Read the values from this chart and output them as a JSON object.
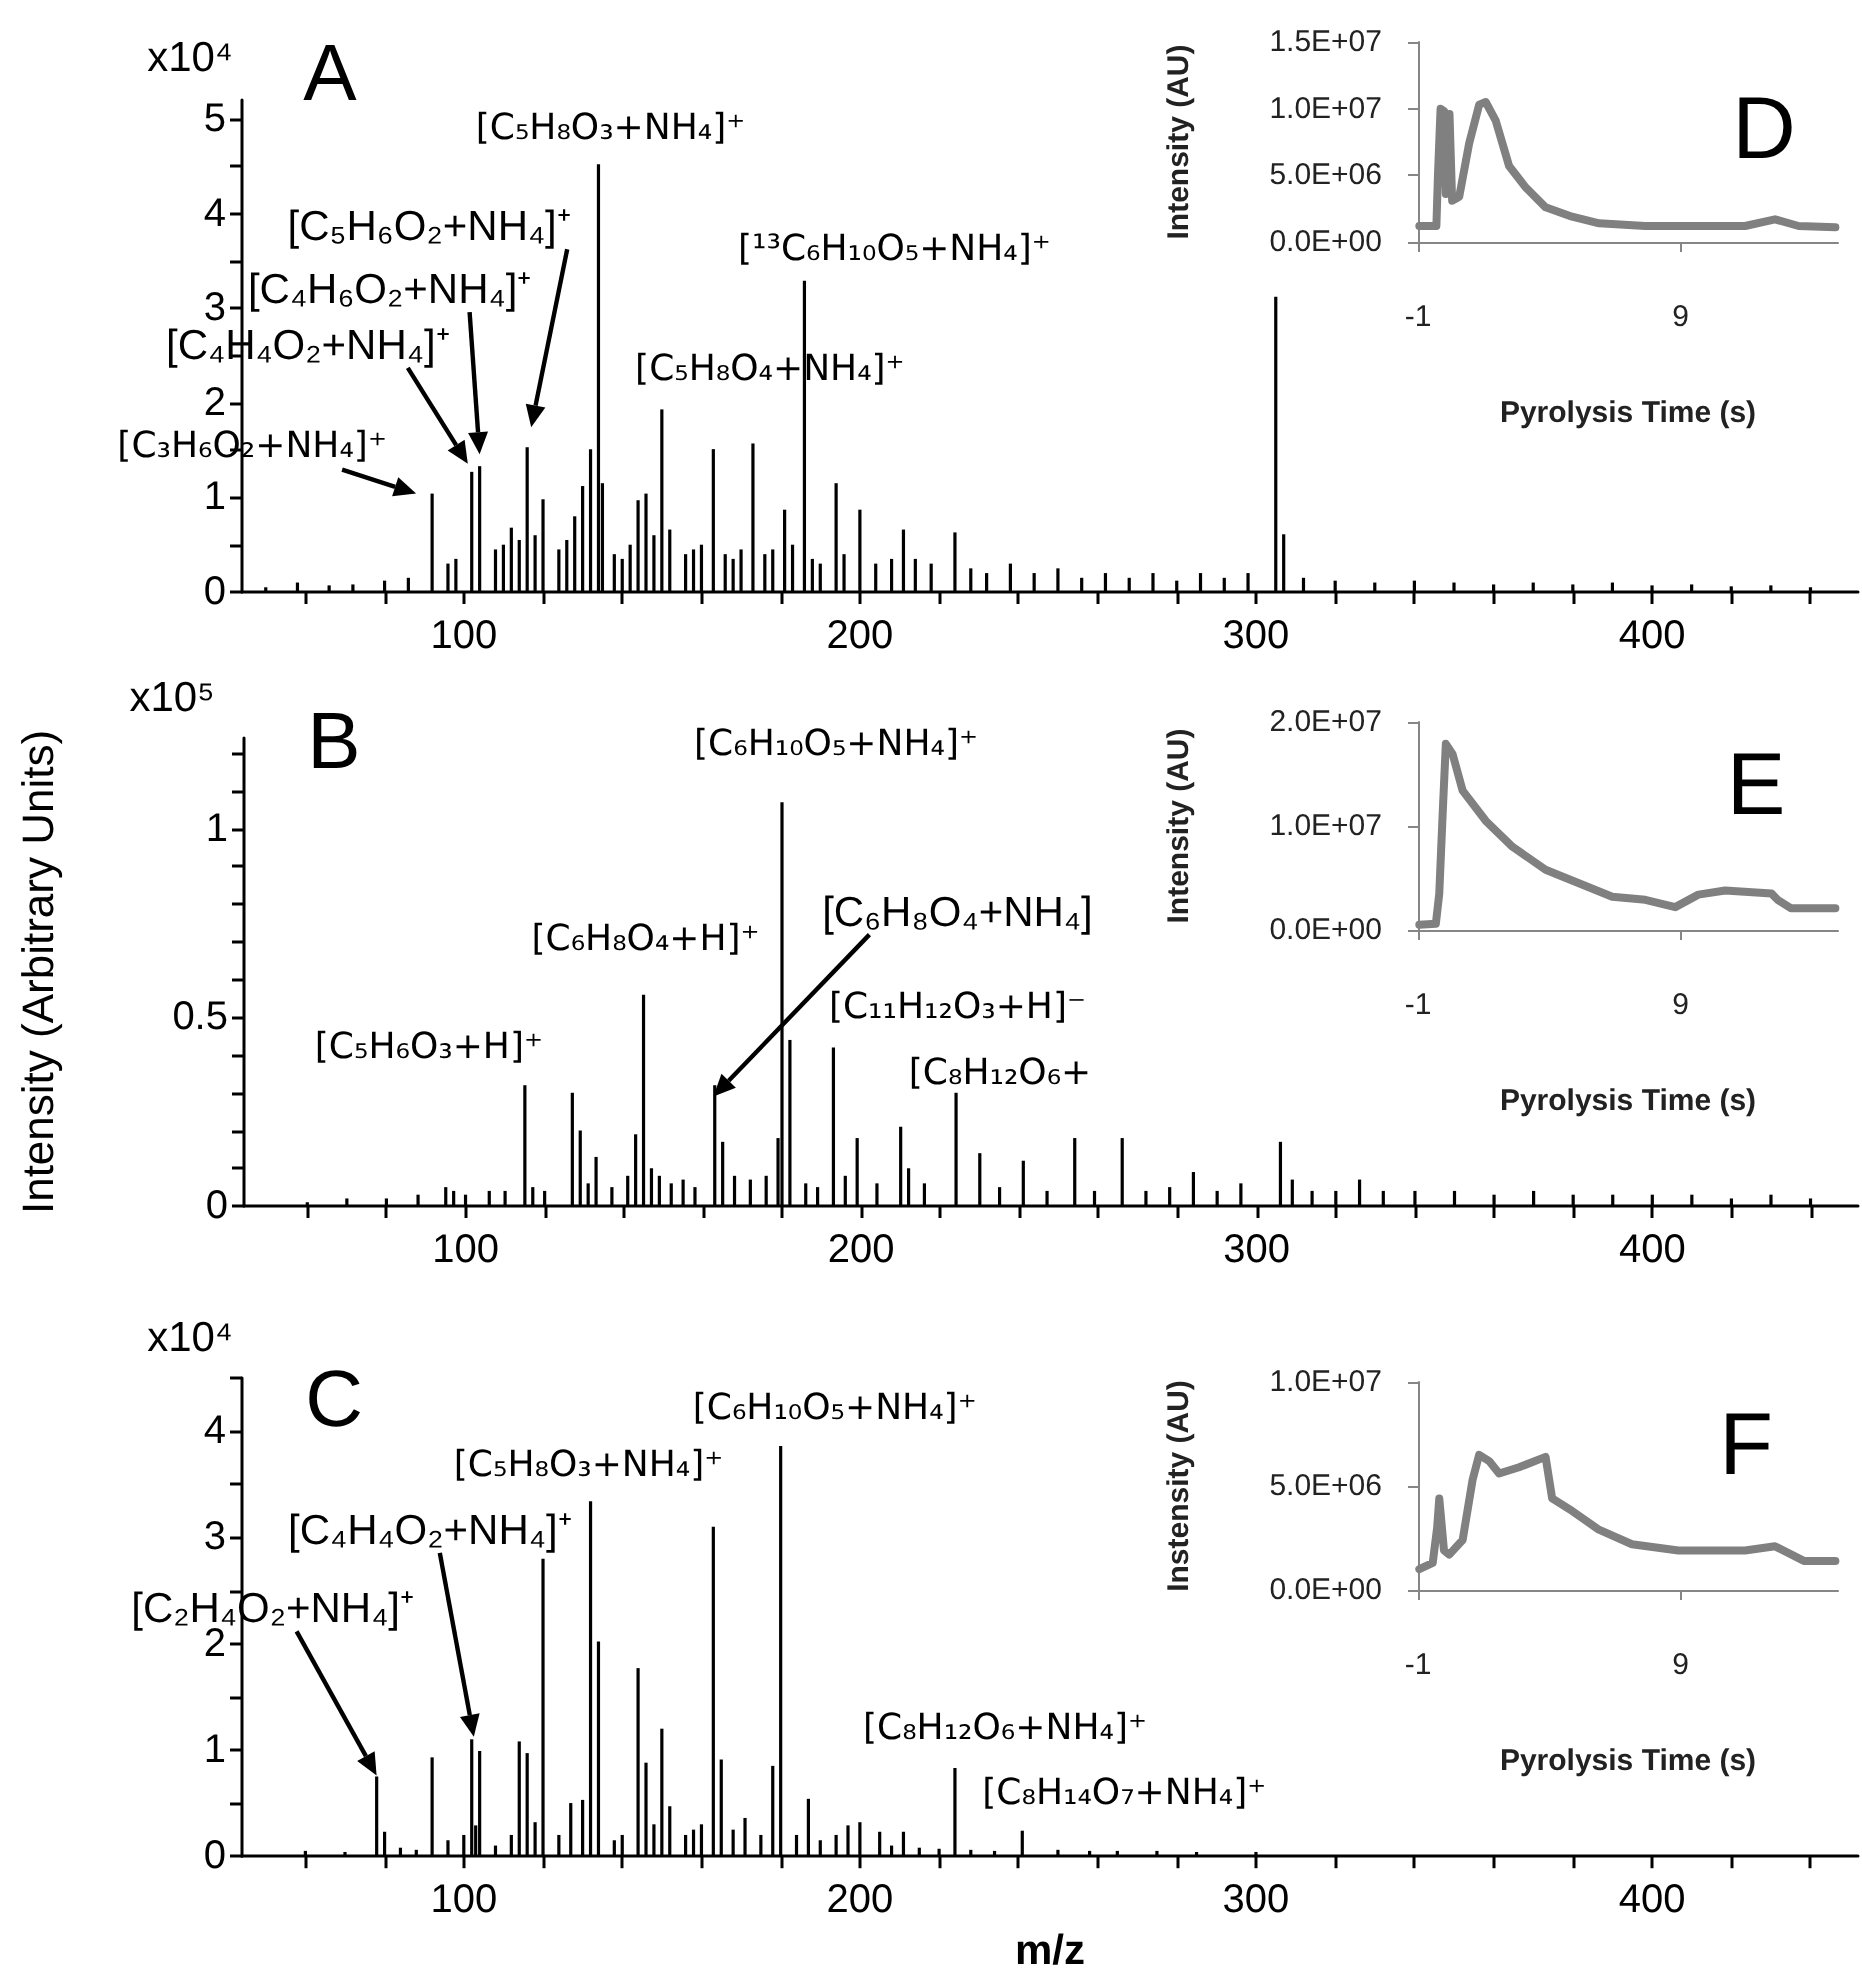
{
  "chart_data": [
    {
      "type": "bar",
      "title": "A",
      "color": "#000000",
      "x": [
        50,
        58,
        66,
        72,
        80,
        86,
        92,
        96,
        98,
        102,
        104,
        108,
        110,
        112,
        114,
        116,
        118,
        120,
        124,
        126,
        128,
        130,
        132,
        134,
        135,
        138,
        140,
        142,
        144,
        146,
        148,
        150,
        152,
        156,
        158,
        160,
        163,
        166,
        168,
        170,
        173,
        176,
        178,
        181,
        183,
        186,
        188,
        190,
        194,
        196,
        200,
        204,
        208,
        211,
        214,
        218,
        224,
        228,
        232,
        238,
        244,
        250,
        256,
        262,
        268,
        274,
        280,
        286,
        292,
        298,
        305,
        307,
        312,
        320,
        330,
        340,
        350,
        360,
        370,
        380,
        390,
        400,
        410,
        420,
        430,
        440
      ],
      "values": [
        0.05,
        0.1,
        0.07,
        0.08,
        0.12,
        0.15,
        1.04,
        0.3,
        0.35,
        1.27,
        1.33,
        0.45,
        0.5,
        0.68,
        0.55,
        1.53,
        0.6,
        0.98,
        0.45,
        0.55,
        0.8,
        1.12,
        1.51,
        4.52,
        1.15,
        0.4,
        0.35,
        0.5,
        0.97,
        1.04,
        0.6,
        1.93,
        0.66,
        0.4,
        0.45,
        0.5,
        1.51,
        0.4,
        0.35,
        0.45,
        1.57,
        0.4,
        0.45,
        0.87,
        0.5,
        3.29,
        0.35,
        0.3,
        1.15,
        0.4,
        0.87,
        0.3,
        0.35,
        0.66,
        0.35,
        0.3,
        0.63,
        0.25,
        0.2,
        0.3,
        0.2,
        0.25,
        0.15,
        0.2,
        0.15,
        0.2,
        0.12,
        0.2,
        0.15,
        0.2,
        3.12,
        0.61,
        0.15,
        0.12,
        0.1,
        0.12,
        0.1,
        0.08,
        0.1,
        0.08,
        0.1,
        0.07,
        0.08,
        0.06,
        0.07,
        0.05
      ],
      "xlim": [
        44,
        452
      ],
      "xticks": [
        {
          "value": 60,
          "label": null
        },
        {
          "value": 80,
          "label": null
        },
        100,
        {
          "value": 120,
          "label": null
        },
        {
          "value": 140,
          "label": null
        },
        {
          "value": 160,
          "label": null
        },
        {
          "value": 180,
          "label": null
        },
        200,
        {
          "value": 220,
          "label": null
        },
        {
          "value": 240,
          "label": null
        },
        {
          "value": 260,
          "label": null
        },
        {
          "value": 280,
          "label": null
        },
        300,
        {
          "value": 320,
          "label": null
        },
        {
          "value": 340,
          "label": null
        },
        {
          "value": 360,
          "label": null
        },
        {
          "value": 380,
          "label": null
        },
        400,
        {
          "value": 420,
          "label": null
        },
        {
          "value": 440,
          "label": null
        }
      ],
      "ylim": [
        0,
        5.2
      ],
      "yticks": [
        0,
        {
          "value": 0.5,
          "label": null
        },
        1,
        {
          "value": 1.5,
          "label": null
        },
        2,
        {
          "value": 2.5,
          "label": null
        },
        3,
        {
          "value": 3.5,
          "label": null
        },
        4,
        {
          "value": 4.5,
          "label": null
        },
        5
      ],
      "annotations": [
        "x10⁴",
        {
          "text": "[C₃H₆O₂+NH₄]⁺",
          "x": 92,
          "y": 1.04
        },
        "[C₄H₄O₂+NH₄]⁺",
        "[C₄H₆O₂+NH₄]⁺",
        "[C₅H₆O₂+NH₄]⁺",
        {
          "text": "[C₅H₈O₃+NH₄]⁺",
          "x": 134,
          "y": 4.52
        },
        {
          "text": "[C₅H₈O₄+NH₄]⁺",
          "x": 150,
          "y": 1.93
        },
        {
          "text": "[¹³C₆H₁₀O₅+NH₄]⁺",
          "x": 186,
          "y": 3.29
        }
      ]
    },
    {
      "type": "line",
      "title": "D",
      "xlabel": "Pyrolysis Time (s)",
      "ylabel": "Intensity (AU)",
      "color": "#808080",
      "marker": "none",
      "line_style": "solid",
      "x": [
        -0.95,
        -0.3,
        -0.24,
        -0.14,
        0.0,
        0.06,
        0.2,
        0.3,
        0.57,
        0.95,
        1.33,
        1.58,
        1.96,
        2.47,
        3.1,
        3.86,
        4.87,
        5.9,
        7.66,
        11.46,
        12.6,
        13.5,
        14.9
      ],
      "values": [
        1200000,
        1200000,
        5000000,
        10000000,
        9800000,
        3600000,
        9600000,
        3100000,
        3400000,
        7400000,
        10300000,
        10500000,
        9100000,
        5700000,
        4100000,
        2600000,
        1900000,
        1400000,
        1200000,
        1200000,
        1700000,
        1200000,
        1100000
      ],
      "xlim": [
        -1,
        15
      ],
      "xticks": [
        -1,
        9
      ],
      "ylim": [
        0,
        15000000
      ],
      "yticks": [
        {
          "value": 0,
          "label": "0.0E+00"
        },
        {
          "value": 5000000,
          "label": "5.0E+06"
        },
        {
          "value": 10000000,
          "label": "1.0E+07"
        },
        {
          "value": 15000000,
          "label": "1.5E+07"
        }
      ]
    },
    {
      "type": "bar",
      "title": "B",
      "ylabel": "Intensity (Arbitrary Units)",
      "color": "#000000",
      "x": [
        60,
        70,
        80,
        88,
        95,
        97,
        100,
        106,
        110,
        115,
        117,
        120,
        127,
        129,
        131,
        133,
        137,
        141,
        143,
        145,
        147,
        149,
        152,
        155,
        158,
        163,
        165,
        168,
        172,
        176,
        179,
        180,
        182,
        186,
        189,
        193,
        196,
        199,
        204,
        210,
        212,
        216,
        224,
        230,
        235,
        241,
        247,
        254,
        259,
        266,
        272,
        278,
        284,
        290,
        296,
        306,
        309,
        314,
        320,
        326,
        332,
        340,
        350,
        360,
        370,
        380,
        390,
        400,
        410,
        420,
        430,
        440
      ],
      "values": [
        0.01,
        0.02,
        0.02,
        0.03,
        0.05,
        0.04,
        0.03,
        0.04,
        0.04,
        0.32,
        0.05,
        0.04,
        0.3,
        0.2,
        0.06,
        0.13,
        0.05,
        0.08,
        0.19,
        0.56,
        0.1,
        0.08,
        0.06,
        0.07,
        0.05,
        0.32,
        0.17,
        0.08,
        0.07,
        0.08,
        0.18,
        1.07,
        0.44,
        0.06,
        0.05,
        0.42,
        0.08,
        0.18,
        0.06,
        0.21,
        0.1,
        0.06,
        0.3,
        0.14,
        0.05,
        0.12,
        0.04,
        0.18,
        0.04,
        0.18,
        0.04,
        0.05,
        0.09,
        0.04,
        0.06,
        0.17,
        0.07,
        0.04,
        0.04,
        0.07,
        0.04,
        0.04,
        0.04,
        0.03,
        0.04,
        0.03,
        0.03,
        0.03,
        0.03,
        0.02,
        0.03,
        0.02
      ],
      "xlim": [
        44,
        452
      ],
      "xticks": [
        {
          "value": 60,
          "label": null
        },
        {
          "value": 80,
          "label": null
        },
        100,
        {
          "value": 120,
          "label": null
        },
        {
          "value": 140,
          "label": null
        },
        {
          "value": 160,
          "label": null
        },
        {
          "value": 180,
          "label": null
        },
        200,
        {
          "value": 220,
          "label": null
        },
        {
          "value": 240,
          "label": null
        },
        {
          "value": 260,
          "label": null
        },
        {
          "value": 280,
          "label": null
        },
        300,
        {
          "value": 320,
          "label": null
        },
        {
          "value": 340,
          "label": null
        },
        {
          "value": 360,
          "label": null
        },
        {
          "value": 380,
          "label": null
        },
        400,
        {
          "value": 420,
          "label": null
        },
        {
          "value": 440,
          "label": null
        }
      ],
      "ylim": [
        0,
        1.24
      ],
      "yticks": [
        0,
        {
          "value": 0.1,
          "label": null
        },
        {
          "value": 0.2,
          "label": null
        },
        {
          "value": 0.3,
          "label": null
        },
        {
          "value": 0.4,
          "label": null
        },
        0.5,
        {
          "value": 0.6,
          "label": null
        },
        {
          "value": 0.7,
          "label": null
        },
        {
          "value": 0.8,
          "label": null
        },
        {
          "value": 0.9,
          "label": null
        },
        1,
        {
          "value": 1.1,
          "label": null
        },
        {
          "value": 1.2,
          "label": null
        }
      ],
      "annotations": [
        "x10⁵",
        {
          "text": "[C₅H₆O₃+H]⁺",
          "x": 115,
          "y": 0.32
        },
        {
          "text": "[C₆H₈O₄+H]⁺",
          "x": 145,
          "y": 0.56
        },
        {
          "text": "[C₆H₁₀O₅+NH₄]⁺",
          "x": 180,
          "y": 1.07
        },
        "[C₆H₈O₄+NH₄]",
        {
          "text": "[C₁₁H₁₂O₃+H]⁻",
          "x": 193,
          "y": 0.42
        },
        {
          "text": "[C₈H₁₂O₆+",
          "x": 224,
          "y": 0.3
        }
      ]
    },
    {
      "type": "line",
      "title": "E",
      "xlabel": "Pyrolysis Time (s)",
      "ylabel": "Intensity (AU)",
      "color": "#808080",
      "marker": "none",
      "line_style": "solid",
      "x": [
        -0.95,
        -0.32,
        -0.19,
        -0.06,
        0.06,
        0.32,
        0.7,
        1.58,
        2.6,
        3.86,
        5.13,
        6.4,
        7.66,
        8.8,
        9.68,
        10.7,
        12.47,
        12.7,
        13.2,
        14.9
      ],
      "values": [
        500000,
        600000,
        3500000,
        11200000,
        17900000,
        16900000,
        13400000,
        10500000,
        8000000,
        5800000,
        4500000,
        3200000,
        2900000,
        2200000,
        3400000,
        3800000,
        3500000,
        2900000,
        2100000,
        2100000
      ],
      "xlim": [
        -1,
        15
      ],
      "xticks": [
        -1,
        9
      ],
      "ylim": [
        0,
        20000000
      ],
      "yticks": [
        {
          "value": 0,
          "label": "0.0E+00"
        },
        {
          "value": 10000000,
          "label": "1.0E+07"
        },
        {
          "value": 20000000,
          "label": "2.0E+07"
        }
      ]
    },
    {
      "type": "bar",
      "title": "C",
      "xlabel": "m/z",
      "color": "#000000",
      "x": [
        60,
        70,
        78,
        80,
        84,
        88,
        92,
        96,
        100,
        102,
        103,
        104,
        108,
        112,
        114,
        116,
        118,
        120,
        124,
        127,
        130,
        132,
        134,
        138,
        140,
        144,
        146,
        148,
        150,
        152,
        156,
        158,
        160,
        163,
        165,
        168,
        171,
        175,
        178,
        180,
        184,
        187,
        190,
        194,
        197,
        200,
        205,
        208,
        211,
        215,
        220,
        224,
        228,
        234,
        241,
        250,
        258,
        265,
        275,
        285,
        300
      ],
      "values": [
        0.05,
        0.04,
        0.75,
        0.23,
        0.08,
        0.06,
        0.93,
        0.15,
        0.2,
        1.1,
        0.29,
        0.99,
        0.1,
        0.2,
        1.08,
        0.97,
        0.32,
        2.8,
        0.2,
        0.5,
        0.53,
        3.34,
        2.02,
        0.15,
        0.2,
        1.77,
        0.88,
        0.3,
        1.2,
        0.47,
        0.2,
        0.25,
        0.3,
        3.1,
        0.91,
        0.25,
        0.36,
        0.2,
        0.85,
        3.86,
        0.2,
        0.54,
        0.15,
        0.2,
        0.29,
        0.32,
        0.23,
        0.1,
        0.23,
        0.08,
        0.07,
        0.83,
        0.06,
        0.05,
        0.24,
        0.06,
        0.05,
        0.05,
        0.05,
        0.04,
        0.04
      ],
      "xlim": [
        44,
        452
      ],
      "xticks": [
        {
          "value": 60,
          "label": null
        },
        {
          "value": 80,
          "label": null
        },
        100,
        {
          "value": 120,
          "label": null
        },
        {
          "value": 140,
          "label": null
        },
        {
          "value": 160,
          "label": null
        },
        {
          "value": 180,
          "label": null
        },
        200,
        {
          "value": 220,
          "label": null
        },
        {
          "value": 240,
          "label": null
        },
        {
          "value": 260,
          "label": null
        },
        {
          "value": 280,
          "label": null
        },
        300,
        {
          "value": 320,
          "label": null
        },
        {
          "value": 340,
          "label": null
        },
        {
          "value": 360,
          "label": null
        },
        {
          "value": 380,
          "label": null
        },
        400,
        {
          "value": 420,
          "label": null
        },
        {
          "value": 440,
          "label": null
        }
      ],
      "ylim": [
        0,
        4.5
      ],
      "yticks": [
        0,
        {
          "value": 0.5,
          "label": null
        },
        1,
        {
          "value": 1.5,
          "label": null
        },
        2,
        {
          "value": 2.5,
          "label": null
        },
        3,
        {
          "value": 3.5,
          "label": null
        },
        4,
        {
          "value": 4.5,
          "label": null
        }
      ],
      "annotations": [
        "x10⁴",
        "[C₂H₄O₂+NH₄]⁺",
        "[C₄H₄O₂+NH₄]⁺",
        {
          "text": "[C₅H₈O₃+NH₄]⁺",
          "x": 132,
          "y": 3.34
        },
        {
          "text": "[C₆H₁₀O₅+NH₄]⁺",
          "x": 180,
          "y": 3.86
        },
        {
          "text": "[C₈H₁₂O₆+NH₄]⁺",
          "x": 224,
          "y": 0.83
        },
        {
          "text": "[C₈H₁₄O₇+NH₄]⁺",
          "x": 241,
          "y": 0.24
        }
      ]
    },
    {
      "type": "line",
      "title": "F",
      "xlabel": "Pyrolysis Time (s)",
      "ylabel": "Instensity (AU)",
      "color": "#808080",
      "marker": "none",
      "line_style": "solid",
      "x": [
        -0.95,
        -0.44,
        -0.27,
        -0.19,
        -0.01,
        0.19,
        0.7,
        1.08,
        1.33,
        1.71,
        2.09,
        2.85,
        3.86,
        4.11,
        4.87,
        5.89,
        7.15,
        8.92,
        11.46,
        12.6,
        13.7,
        14.9
      ],
      "values": [
        1000000,
        1300000,
        3000000,
        4400000,
        1900000,
        1700000,
        2400000,
        5300000,
        6500000,
        6200000,
        5600000,
        5900000,
        6400000,
        4400000,
        3800000,
        2900000,
        2200000,
        1900000,
        1900000,
        2100000,
        1400000,
        1400000
      ],
      "xlim": [
        -1,
        15
      ],
      "xticks": [
        -1,
        9
      ],
      "ylim": [
        0,
        10000000
      ],
      "yticks": [
        {
          "value": 0,
          "label": "0.0E+00"
        },
        {
          "value": 5000000,
          "label": "5.0E+06"
        },
        {
          "value": 10000000,
          "label": "1.0E+07"
        }
      ]
    }
  ]
}
